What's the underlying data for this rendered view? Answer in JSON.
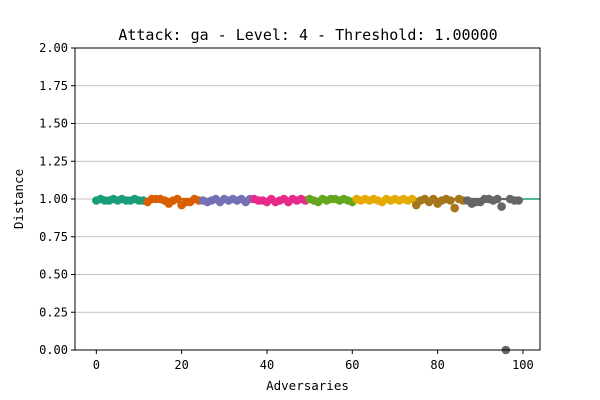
{
  "chart_data": {
    "type": "scatter",
    "title": "Attack: ga - Level: 4 - Threshold: 1.00000",
    "xlabel": "Adversaries",
    "ylabel": "Distance",
    "xlim": [
      -5,
      104
    ],
    "ylim": [
      0,
      2
    ],
    "xticks": [
      0,
      20,
      40,
      60,
      80,
      100
    ],
    "yticks": [
      0.0,
      0.25,
      0.5,
      0.75,
      1.0,
      1.25,
      1.5,
      1.75,
      2.0
    ],
    "xtick_labels": [
      "0",
      "20",
      "40",
      "60",
      "80",
      "100"
    ],
    "ytick_labels": [
      "0.00",
      "0.25",
      "0.50",
      "0.75",
      "1.00",
      "1.25",
      "1.50",
      "1.75",
      "2.00"
    ],
    "grid": "horizontal",
    "threshold": {
      "value": 1.0,
      "color": "#1b9e77"
    },
    "groups": [
      {
        "start": 0,
        "end": 12,
        "color": "#1b9e77"
      },
      {
        "start": 12,
        "end": 25,
        "color": "#d95f02"
      },
      {
        "start": 25,
        "end": 37,
        "color": "#7570b3"
      },
      {
        "start": 37,
        "end": 50,
        "color": "#e7298a"
      },
      {
        "start": 50,
        "end": 61,
        "color": "#66a61e"
      },
      {
        "start": 61,
        "end": 75,
        "color": "#e6ab02"
      },
      {
        "start": 75,
        "end": 87,
        "color": "#a6761d"
      },
      {
        "start": 87,
        "end": 100,
        "color": "#666666"
      }
    ],
    "points": [
      {
        "x": 0,
        "y": 0.99
      },
      {
        "x": 1,
        "y": 1.0
      },
      {
        "x": 2,
        "y": 0.99
      },
      {
        "x": 3,
        "y": 0.99
      },
      {
        "x": 4,
        "y": 1.0
      },
      {
        "x": 5,
        "y": 0.99
      },
      {
        "x": 6,
        "y": 1.0
      },
      {
        "x": 7,
        "y": 0.99
      },
      {
        "x": 8,
        "y": 0.99
      },
      {
        "x": 9,
        "y": 1.0
      },
      {
        "x": 10,
        "y": 0.99
      },
      {
        "x": 11,
        "y": 0.99
      },
      {
        "x": 12,
        "y": 0.98
      },
      {
        "x": 13,
        "y": 1.0
      },
      {
        "x": 14,
        "y": 1.0
      },
      {
        "x": 15,
        "y": 1.0
      },
      {
        "x": 16,
        "y": 0.99
      },
      {
        "x": 17,
        "y": 0.97
      },
      {
        "x": 18,
        "y": 0.99
      },
      {
        "x": 19,
        "y": 1.0
      },
      {
        "x": 20,
        "y": 0.96
      },
      {
        "x": 21,
        "y": 0.98
      },
      {
        "x": 22,
        "y": 0.98
      },
      {
        "x": 23,
        "y": 1.0
      },
      {
        "x": 24,
        "y": 0.99
      },
      {
        "x": 25,
        "y": 0.99
      },
      {
        "x": 26,
        "y": 0.98
      },
      {
        "x": 27,
        "y": 0.99
      },
      {
        "x": 28,
        "y": 1.0
      },
      {
        "x": 29,
        "y": 0.98
      },
      {
        "x": 30,
        "y": 1.0
      },
      {
        "x": 31,
        "y": 0.99
      },
      {
        "x": 32,
        "y": 1.0
      },
      {
        "x": 33,
        "y": 0.99
      },
      {
        "x": 34,
        "y": 1.0
      },
      {
        "x": 35,
        "y": 0.98
      },
      {
        "x": 36,
        "y": 1.0
      },
      {
        "x": 37,
        "y": 1.0
      },
      {
        "x": 38,
        "y": 0.99
      },
      {
        "x": 39,
        "y": 0.99
      },
      {
        "x": 40,
        "y": 0.98
      },
      {
        "x": 41,
        "y": 1.0
      },
      {
        "x": 42,
        "y": 0.98
      },
      {
        "x": 43,
        "y": 0.99
      },
      {
        "x": 44,
        "y": 1.0
      },
      {
        "x": 45,
        "y": 0.98
      },
      {
        "x": 46,
        "y": 1.0
      },
      {
        "x": 47,
        "y": 0.99
      },
      {
        "x": 48,
        "y": 1.0
      },
      {
        "x": 49,
        "y": 0.99
      },
      {
        "x": 50,
        "y": 1.0
      },
      {
        "x": 51,
        "y": 0.99
      },
      {
        "x": 52,
        "y": 0.98
      },
      {
        "x": 53,
        "y": 1.0
      },
      {
        "x": 54,
        "y": 0.99
      },
      {
        "x": 55,
        "y": 1.0
      },
      {
        "x": 56,
        "y": 1.0
      },
      {
        "x": 57,
        "y": 0.99
      },
      {
        "x": 58,
        "y": 1.0
      },
      {
        "x": 59,
        "y": 0.99
      },
      {
        "x": 60,
        "y": 0.98
      },
      {
        "x": 61,
        "y": 1.0
      },
      {
        "x": 62,
        "y": 0.99
      },
      {
        "x": 63,
        "y": 1.0
      },
      {
        "x": 64,
        "y": 0.99
      },
      {
        "x": 65,
        "y": 1.0
      },
      {
        "x": 66,
        "y": 0.99
      },
      {
        "x": 67,
        "y": 0.98
      },
      {
        "x": 68,
        "y": 1.0
      },
      {
        "x": 69,
        "y": 0.99
      },
      {
        "x": 70,
        "y": 1.0
      },
      {
        "x": 71,
        "y": 0.99
      },
      {
        "x": 72,
        "y": 1.0
      },
      {
        "x": 73,
        "y": 0.99
      },
      {
        "x": 74,
        "y": 1.0
      },
      {
        "x": 75,
        "y": 0.96
      },
      {
        "x": 76,
        "y": 0.99
      },
      {
        "x": 77,
        "y": 1.0
      },
      {
        "x": 78,
        "y": 0.98
      },
      {
        "x": 79,
        "y": 1.0
      },
      {
        "x": 80,
        "y": 0.97
      },
      {
        "x": 81,
        "y": 0.99
      },
      {
        "x": 82,
        "y": 1.0
      },
      {
        "x": 83,
        "y": 0.99
      },
      {
        "x": 84,
        "y": 0.94
      },
      {
        "x": 85,
        "y": 1.0
      },
      {
        "x": 86,
        "y": 0.99
      },
      {
        "x": 87,
        "y": 0.99
      },
      {
        "x": 88,
        "y": 0.97
      },
      {
        "x": 89,
        "y": 0.98
      },
      {
        "x": 90,
        "y": 0.98
      },
      {
        "x": 91,
        "y": 1.0
      },
      {
        "x": 92,
        "y": 1.0
      },
      {
        "x": 93,
        "y": 0.99
      },
      {
        "x": 94,
        "y": 1.0
      },
      {
        "x": 95,
        "y": 0.95
      },
      {
        "x": 96,
        "y": 0.0
      },
      {
        "x": 97,
        "y": 1.0
      },
      {
        "x": 98,
        "y": 0.99
      },
      {
        "x": 99,
        "y": 0.99
      }
    ]
  }
}
